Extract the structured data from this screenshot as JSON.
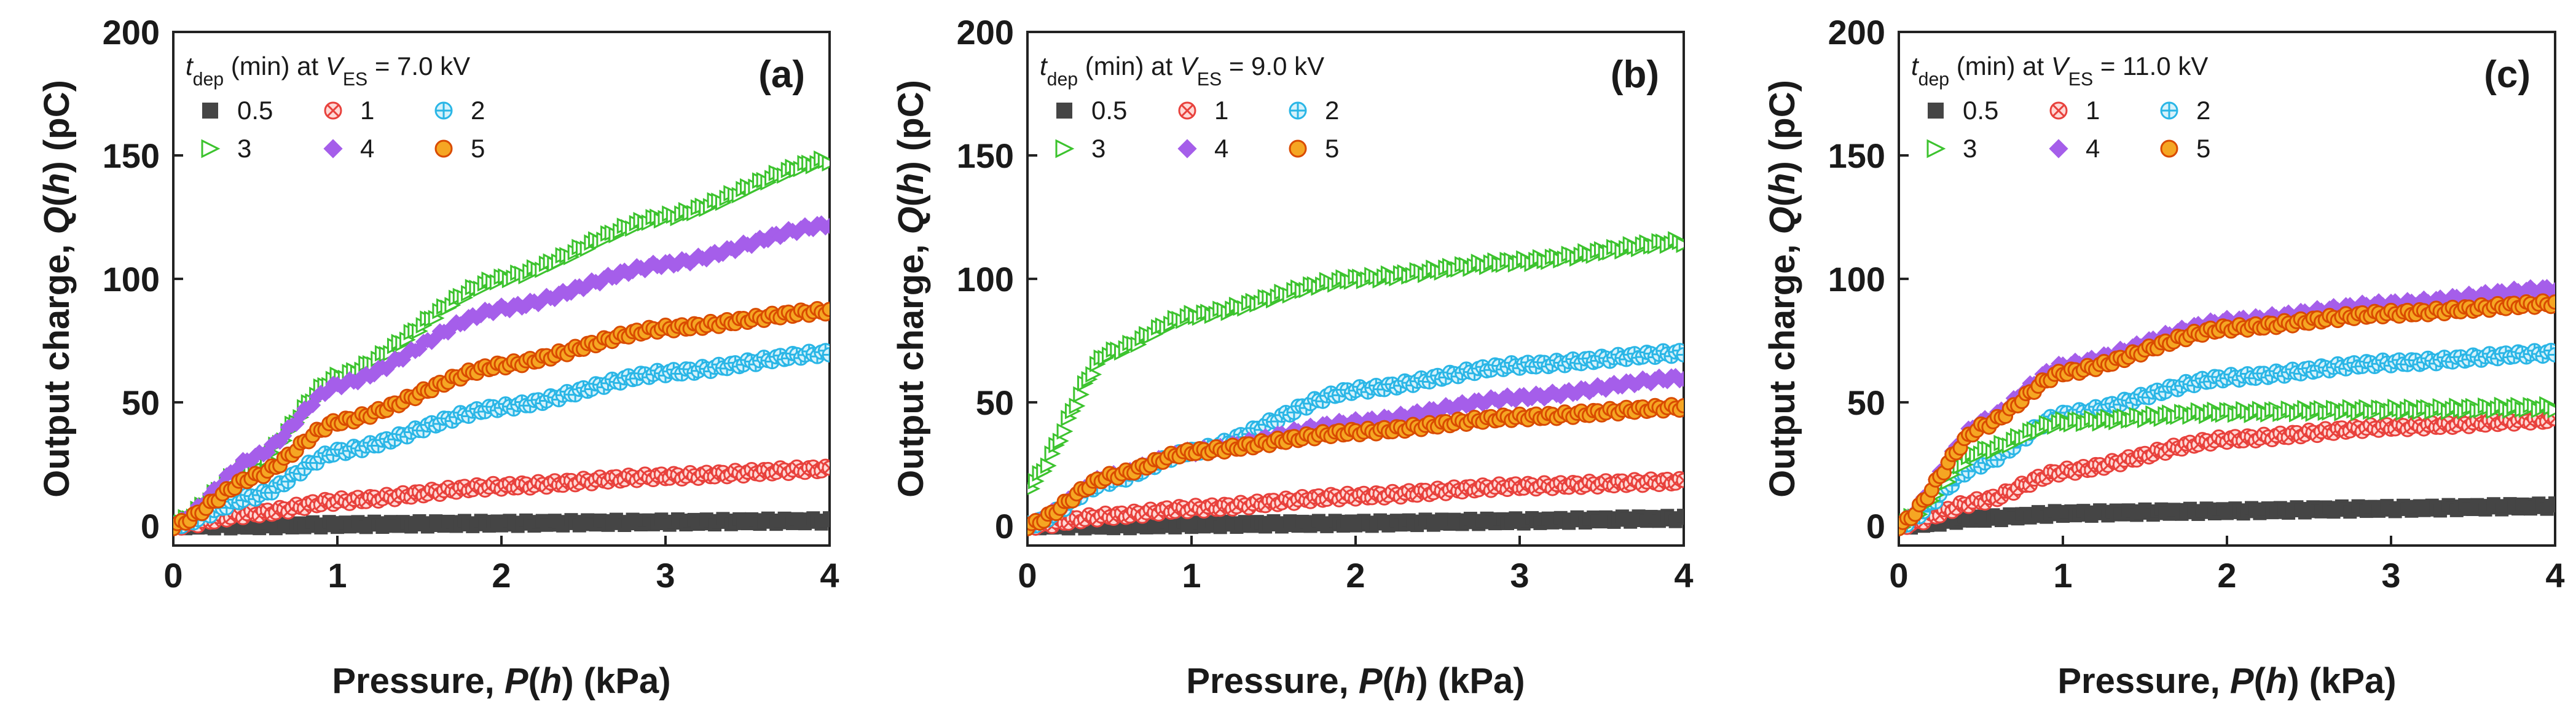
{
  "chart_data": [
    {
      "type": "scatter",
      "panel": "(a)",
      "xlabel_parts": [
        "Pressure, ",
        "P",
        "(",
        "h",
        ") (kPa)"
      ],
      "ylabel_parts": [
        "Output charge, ",
        "Q",
        "(",
        "h",
        ") (pC)"
      ],
      "xlim": [
        0,
        4
      ],
      "ylim": [
        -8,
        200
      ],
      "xticks": [
        0,
        1,
        2,
        3,
        4
      ],
      "yticks": [
        0,
        50,
        100,
        150,
        200
      ],
      "legend": {
        "title_parts": [
          "t",
          "dep",
          " (min) at ",
          "V",
          "ES",
          " = 7.0 kV"
        ],
        "position": "top-left"
      },
      "series": [
        {
          "name": "0.5",
          "marker": "square",
          "color": "#454545",
          "values_at_x": [
            [
              0,
              0
            ],
            [
              0.5,
              0
            ],
            [
              1,
              0.5
            ],
            [
              2,
              1
            ],
            [
              3,
              1.5
            ],
            [
              4,
              2
            ]
          ]
        },
        {
          "name": "1",
          "marker": "circle-x",
          "color": "#e8413c",
          "values_at_x": [
            [
              0,
              0
            ],
            [
              0.5,
              5
            ],
            [
              1,
              10
            ],
            [
              2,
              16
            ],
            [
              3,
              20
            ],
            [
              4,
              23
            ]
          ]
        },
        {
          "name": "2",
          "marker": "circle-plus",
          "color": "#2ab6e6",
          "values_at_x": [
            [
              0,
              0
            ],
            [
              0.5,
              12
            ],
            [
              1,
              30
            ],
            [
              2,
              48
            ],
            [
              3,
              62
            ],
            [
              4,
              70
            ]
          ]
        },
        {
          "name": "3",
          "marker": "triangle-right",
          "color": "#3cc32e",
          "values_at_x": [
            [
              0,
              0
            ],
            [
              0.5,
              25
            ],
            [
              1,
              60
            ],
            [
              2,
              100
            ],
            [
              3,
              125
            ],
            [
              4,
              148
            ]
          ]
        },
        {
          "name": "4",
          "marker": "diamond",
          "color": "#a55eea",
          "values_at_x": [
            [
              0,
              0
            ],
            [
              0.5,
              28
            ],
            [
              1,
              57
            ],
            [
              2,
              88
            ],
            [
              3,
              106
            ],
            [
              4,
              122
            ]
          ]
        },
        {
          "name": "5",
          "marker": "circle",
          "color": "#f5a623",
          "values_at_x": [
            [
              0,
              0
            ],
            [
              0.5,
              20
            ],
            [
              1,
              42
            ],
            [
              2,
              65
            ],
            [
              3,
              80
            ],
            [
              4,
              87
            ]
          ]
        }
      ]
    },
    {
      "type": "scatter",
      "panel": "(b)",
      "xlabel_parts": [
        "Pressure, ",
        "P",
        "(",
        "h",
        ") (kPa)"
      ],
      "ylabel_parts": [
        "Output charge, ",
        "Q",
        "(",
        "h",
        ") (pC)"
      ],
      "xlim": [
        0,
        4
      ],
      "ylim": [
        -8,
        200
      ],
      "xticks": [
        0,
        1,
        2,
        3,
        4
      ],
      "yticks": [
        0,
        50,
        100,
        150,
        200
      ],
      "legend": {
        "title_parts": [
          "t",
          "dep",
          " (min) at ",
          "V",
          "ES",
          " = 9.0 kV"
        ],
        "position": "top-left"
      },
      "series": [
        {
          "name": "0.5",
          "marker": "square",
          "color": "#454545",
          "values_at_x": [
            [
              0,
              0
            ],
            [
              0.5,
              0
            ],
            [
              1,
              0.5
            ],
            [
              2,
              1
            ],
            [
              3,
              2
            ],
            [
              4,
              3
            ]
          ]
        },
        {
          "name": "1",
          "marker": "circle-x",
          "color": "#e8413c",
          "values_at_x": [
            [
              0,
              0
            ],
            [
              0.5,
              4
            ],
            [
              1,
              7
            ],
            [
              2,
              12
            ],
            [
              3,
              16
            ],
            [
              4,
              18
            ]
          ]
        },
        {
          "name": "2",
          "marker": "circle-plus",
          "color": "#2ab6e6",
          "values_at_x": [
            [
              0,
              0
            ],
            [
              0.5,
              18
            ],
            [
              1,
              30
            ],
            [
              2,
              55
            ],
            [
              3,
              65
            ],
            [
              4,
              70
            ]
          ]
        },
        {
          "name": "3",
          "marker": "triangle-right",
          "color": "#3cc32e",
          "values_at_x": [
            [
              0,
              15
            ],
            [
              0.5,
              70
            ],
            [
              1,
              85
            ],
            [
              2,
              100
            ],
            [
              3,
              107
            ],
            [
              4,
              115
            ]
          ]
        },
        {
          "name": "4",
          "marker": "diamond",
          "color": "#a55eea",
          "values_at_x": [
            [
              0,
              0
            ],
            [
              0.5,
              20
            ],
            [
              1,
              30
            ],
            [
              2,
              42
            ],
            [
              3,
              52
            ],
            [
              4,
              60
            ]
          ]
        },
        {
          "name": "5",
          "marker": "circle",
          "color": "#f5a623",
          "values_at_x": [
            [
              0,
              0
            ],
            [
              0.5,
              20
            ],
            [
              1,
              30
            ],
            [
              2,
              38
            ],
            [
              3,
              44
            ],
            [
              4,
              48
            ]
          ]
        }
      ]
    },
    {
      "type": "scatter",
      "panel": "(c)",
      "xlabel_parts": [
        "Pressure, ",
        "P",
        "(",
        "h",
        ") (kPa)"
      ],
      "ylabel_parts": [
        "Output charge, ",
        "Q",
        "(",
        "h",
        ") (pC)"
      ],
      "xlim": [
        0,
        4
      ],
      "ylim": [
        -8,
        200
      ],
      "xticks": [
        0,
        1,
        2,
        3,
        4
      ],
      "yticks": [
        0,
        50,
        100,
        150,
        200
      ],
      "legend": {
        "title_parts": [
          "t",
          "dep",
          " (min) at ",
          "V",
          "ES",
          " = 11.0 kV"
        ],
        "position": "top-left"
      },
      "series": [
        {
          "name": "0.5",
          "marker": "square",
          "color": "#454545",
          "values_at_x": [
            [
              0,
              0
            ],
            [
              0.5,
              3
            ],
            [
              1,
              5
            ],
            [
              2,
              6
            ],
            [
              3,
              7
            ],
            [
              4,
              8
            ]
          ]
        },
        {
          "name": "1",
          "marker": "circle-x",
          "color": "#e8413c",
          "values_at_x": [
            [
              0,
              0
            ],
            [
              0.5,
              10
            ],
            [
              1,
              22
            ],
            [
              2,
              35
            ],
            [
              3,
              40
            ],
            [
              4,
              43
            ]
          ]
        },
        {
          "name": "2",
          "marker": "circle-plus",
          "color": "#2ab6e6",
          "values_at_x": [
            [
              0,
              0
            ],
            [
              0.5,
              25
            ],
            [
              1,
              45
            ],
            [
              2,
              60
            ],
            [
              3,
              66
            ],
            [
              4,
              70
            ]
          ]
        },
        {
          "name": "3",
          "marker": "triangle-right",
          "color": "#3cc32e",
          "values_at_x": [
            [
              0,
              0
            ],
            [
              0.5,
              30
            ],
            [
              1,
              42
            ],
            [
              2,
              46
            ],
            [
              3,
              47
            ],
            [
              4,
              48
            ]
          ]
        },
        {
          "name": "4",
          "marker": "diamond",
          "color": "#a55eea",
          "values_at_x": [
            [
              0,
              0
            ],
            [
              0.5,
              42
            ],
            [
              1,
              65
            ],
            [
              2,
              83
            ],
            [
              3,
              90
            ],
            [
              4,
              96
            ]
          ]
        },
        {
          "name": "5",
          "marker": "circle",
          "color": "#f5a623",
          "values_at_x": [
            [
              0,
              0
            ],
            [
              0.5,
              40
            ],
            [
              1,
              62
            ],
            [
              2,
              80
            ],
            [
              3,
              86
            ],
            [
              4,
              90
            ]
          ]
        }
      ]
    }
  ]
}
